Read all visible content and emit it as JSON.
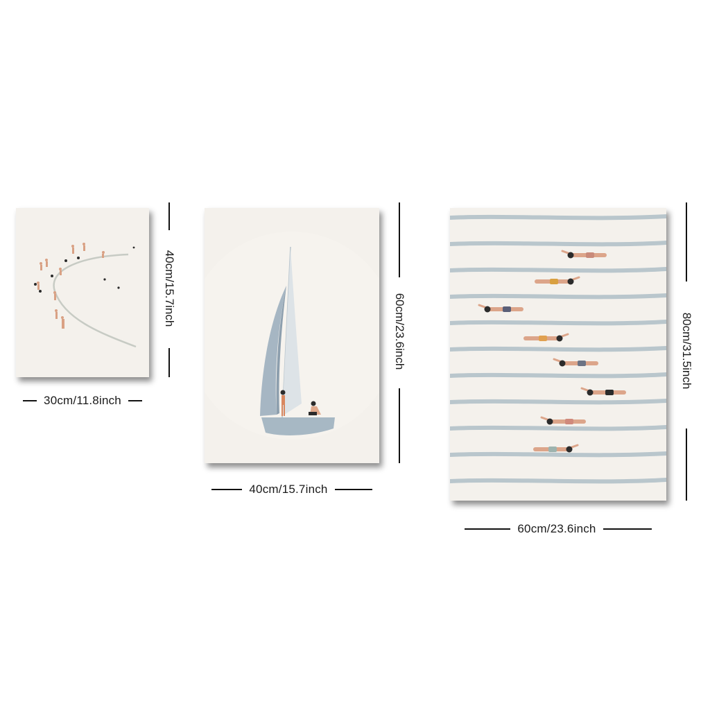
{
  "posters": [
    {
      "name": "beach-curve-print",
      "width_label": "30cm/11.8inch",
      "height_label": "40cm/15.7inch"
    },
    {
      "name": "sailboat-print",
      "width_label": "40cm/15.7inch",
      "height_label": "60cm/23.6inch"
    },
    {
      "name": "swimmers-print",
      "width_label": "60cm/23.6inch",
      "height_label": "80cm/31.5inch"
    }
  ],
  "colors": {
    "canvas": "#f4f1ec",
    "sail": "#a9b9c6",
    "hull": "#a7b8c4",
    "lane": "#b9c6cc",
    "skin": "#d99e80",
    "dark": "#2b2b2b"
  }
}
